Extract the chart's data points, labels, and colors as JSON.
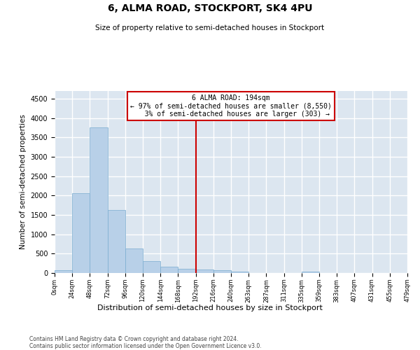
{
  "title": "6, ALMA ROAD, STOCKPORT, SK4 4PU",
  "subtitle": "Size of property relative to semi-detached houses in Stockport",
  "xlabel": "Distribution of semi-detached houses by size in Stockport",
  "ylabel": "Number of semi-detached properties",
  "bar_color": "#b8d0e8",
  "bar_edge_color": "#7aadd0",
  "background_color": "#dce6f0",
  "grid_color": "#ffffff",
  "bin_labels": [
    "0sqm",
    "24sqm",
    "48sqm",
    "72sqm",
    "96sqm",
    "120sqm",
    "144sqm",
    "168sqm",
    "192sqm",
    "216sqm",
    "240sqm",
    "263sqm",
    "287sqm",
    "311sqm",
    "335sqm",
    "359sqm",
    "383sqm",
    "407sqm",
    "431sqm",
    "455sqm",
    "479sqm"
  ],
  "bar_values": [
    75,
    2060,
    3760,
    1630,
    630,
    300,
    155,
    110,
    90,
    65,
    40,
    0,
    0,
    0,
    45,
    0,
    0,
    0,
    0,
    0
  ],
  "ylim": [
    0,
    4700
  ],
  "yticks": [
    0,
    500,
    1000,
    1500,
    2000,
    2500,
    3000,
    3500,
    4000,
    4500
  ],
  "property_label": "6 ALMA ROAD: 194sqm",
  "pct_smaller": 97,
  "n_smaller": 8550,
  "pct_larger": 3,
  "n_larger": 303,
  "vline_x": 8,
  "annotation_box_color": "#cc0000",
  "footer_line1": "Contains HM Land Registry data © Crown copyright and database right 2024.",
  "footer_line2": "Contains public sector information licensed under the Open Government Licence v3.0."
}
